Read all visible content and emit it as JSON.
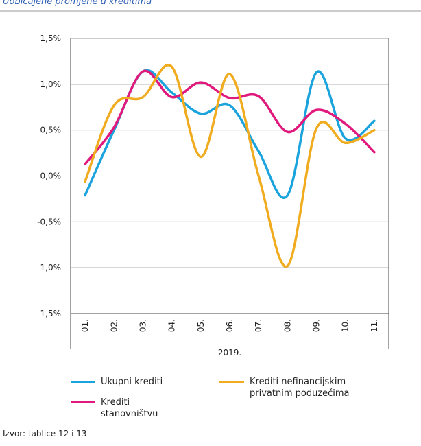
{
  "chart_data": {
    "type": "line",
    "title": "Uobičajene promjene u kreditima",
    "x_label": "2019.",
    "source": "Izvor: tablice 12 i 13",
    "categories": [
      "01.",
      "02.",
      "03.",
      "04.",
      "05.",
      "06.",
      "07.",
      "08.",
      "09.",
      "10.",
      "11."
    ],
    "ylim": [
      -1.5,
      1.5
    ],
    "yticks": [
      {
        "value": -1.5,
        "label": "-1,5%"
      },
      {
        "value": -1.0,
        "label": "-1,0%"
      },
      {
        "value": -0.5,
        "label": "-0,5%"
      },
      {
        "value": 0,
        "label": "0,0%"
      },
      {
        "value": 0.5,
        "label": "0,5%"
      },
      {
        "value": 1.0,
        "label": "1,0%"
      },
      {
        "value": 1.5,
        "label": "1,5%"
      }
    ],
    "grid": true,
    "series": [
      {
        "name": "Ukupni krediti",
        "color": "#1aa3dc",
        "values": [
          -0.21,
          0.5,
          1.14,
          0.91,
          0.68,
          0.77,
          0.27,
          -0.21,
          1.13,
          0.41,
          0.6
        ]
      },
      {
        "name": "Krediti stanovništvu",
        "color": "#e0197d",
        "values": [
          0.13,
          0.53,
          1.14,
          0.86,
          1.02,
          0.85,
          0.87,
          0.48,
          0.72,
          0.57,
          0.26
        ]
      },
      {
        "name": "Krediti nefinancijskim privatnim poduzećima",
        "color": "#f0ab1e",
        "values": [
          -0.06,
          0.77,
          0.86,
          1.19,
          0.21,
          1.11,
          0.0,
          -0.98,
          0.52,
          0.36,
          0.5
        ]
      }
    ]
  }
}
